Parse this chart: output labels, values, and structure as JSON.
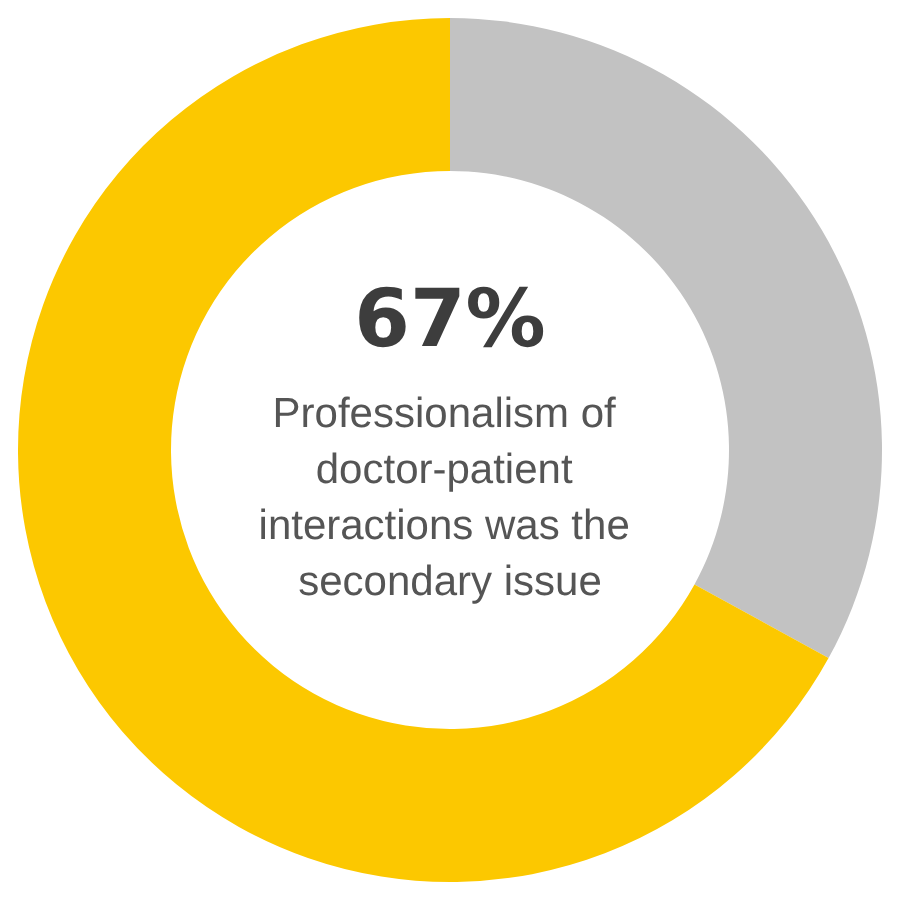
{
  "chart_data": {
    "type": "donut",
    "title": "67%",
    "annotations": [
      "Professionalism of doctor-patient interactions was the secondary issue"
    ],
    "categories": [
      null,
      null
    ],
    "values": [
      33,
      67
    ],
    "colors": [
      "#c2c2c2",
      "#fcc800"
    ]
  }
}
